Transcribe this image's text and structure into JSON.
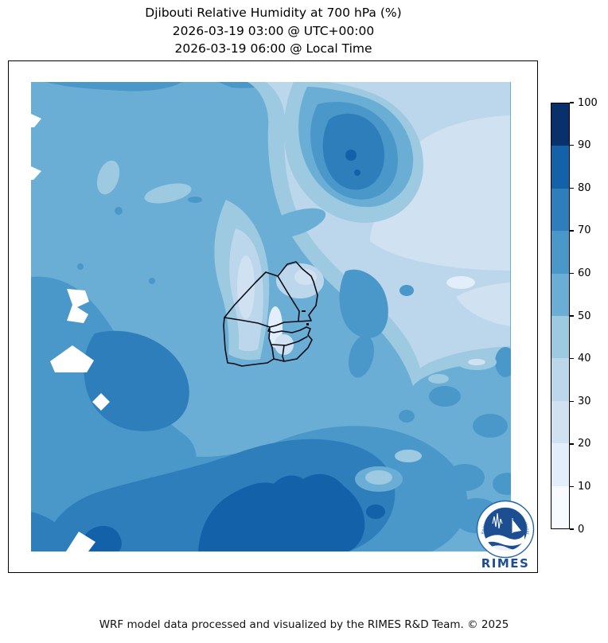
{
  "title": {
    "line1": "Djibouti Relative Humidity at 700 hPa (%)",
    "line2": "2026-03-19 03:00 @ UTC+00:00",
    "line3": "2026-03-19 06:00 @ Local Time"
  },
  "colorbar": {
    "ticks": [
      0,
      10,
      20,
      30,
      40,
      50,
      60,
      70,
      80,
      90,
      100
    ],
    "bands": [
      {
        "range": "0-10",
        "color": "#f7fbff"
      },
      {
        "range": "10-20",
        "color": "#e2eef9"
      },
      {
        "range": "20-30",
        "color": "#d0e1f2"
      },
      {
        "range": "30-40",
        "color": "#bcd7eb"
      },
      {
        "range": "40-50",
        "color": "#9dc9e1"
      },
      {
        "range": "50-60",
        "color": "#6aaed6"
      },
      {
        "range": "60-70",
        "color": "#4a98c9"
      },
      {
        "range": "70-80",
        "color": "#2e7ebc"
      },
      {
        "range": "80-90",
        "color": "#1361a9"
      },
      {
        "range": "90-100",
        "color": "#08306b"
      }
    ]
  },
  "logo": {
    "wordmark": "RIMES",
    "ring_text": "Regional Integrated Multi-Hazard Early Warning System",
    "brand_blue": "#1d4e91",
    "ring_blue": "#2566ae"
  },
  "footer": {
    "text": "WRF model data processed and visualized by the RIMES R&D Team. © 2025"
  },
  "chart_data": {
    "type": "heatmap",
    "subtype": "filled-contour-map",
    "title": "Djibouti Relative Humidity at 700 hPa (%)",
    "valid_time_utc": "2026-03-19 03:00 @ UTC+00:00",
    "valid_time_local": "2026-03-19 06:00 @ Local Time",
    "variable": "Relative Humidity",
    "pressure_level": "700 hPa",
    "units": "%",
    "region_outline": "Djibouti administrative boundaries",
    "colorbar_range": [
      0,
      100
    ],
    "colorbar_interval": 10,
    "legend_position": "right",
    "palette": [
      "#f7fbff",
      "#e2eef9",
      "#d0e1f2",
      "#bcd7eb",
      "#9dc9e1",
      "#6aaed6",
      "#4a98c9",
      "#2e7ebc",
      "#1361a9",
      "#08306b"
    ],
    "notable_features": [
      {
        "area": "bottom-center",
        "value_band": "80-90"
      },
      {
        "area": "upper-center-right closed maximum",
        "value_band": "70-90"
      },
      {
        "area": "right / northeast broad minimum",
        "value_band": "20-40"
      },
      {
        "area": "west and southwest",
        "value_band": "50-70"
      },
      {
        "area": "masked white cells",
        "value_band": "no-data"
      }
    ]
  }
}
